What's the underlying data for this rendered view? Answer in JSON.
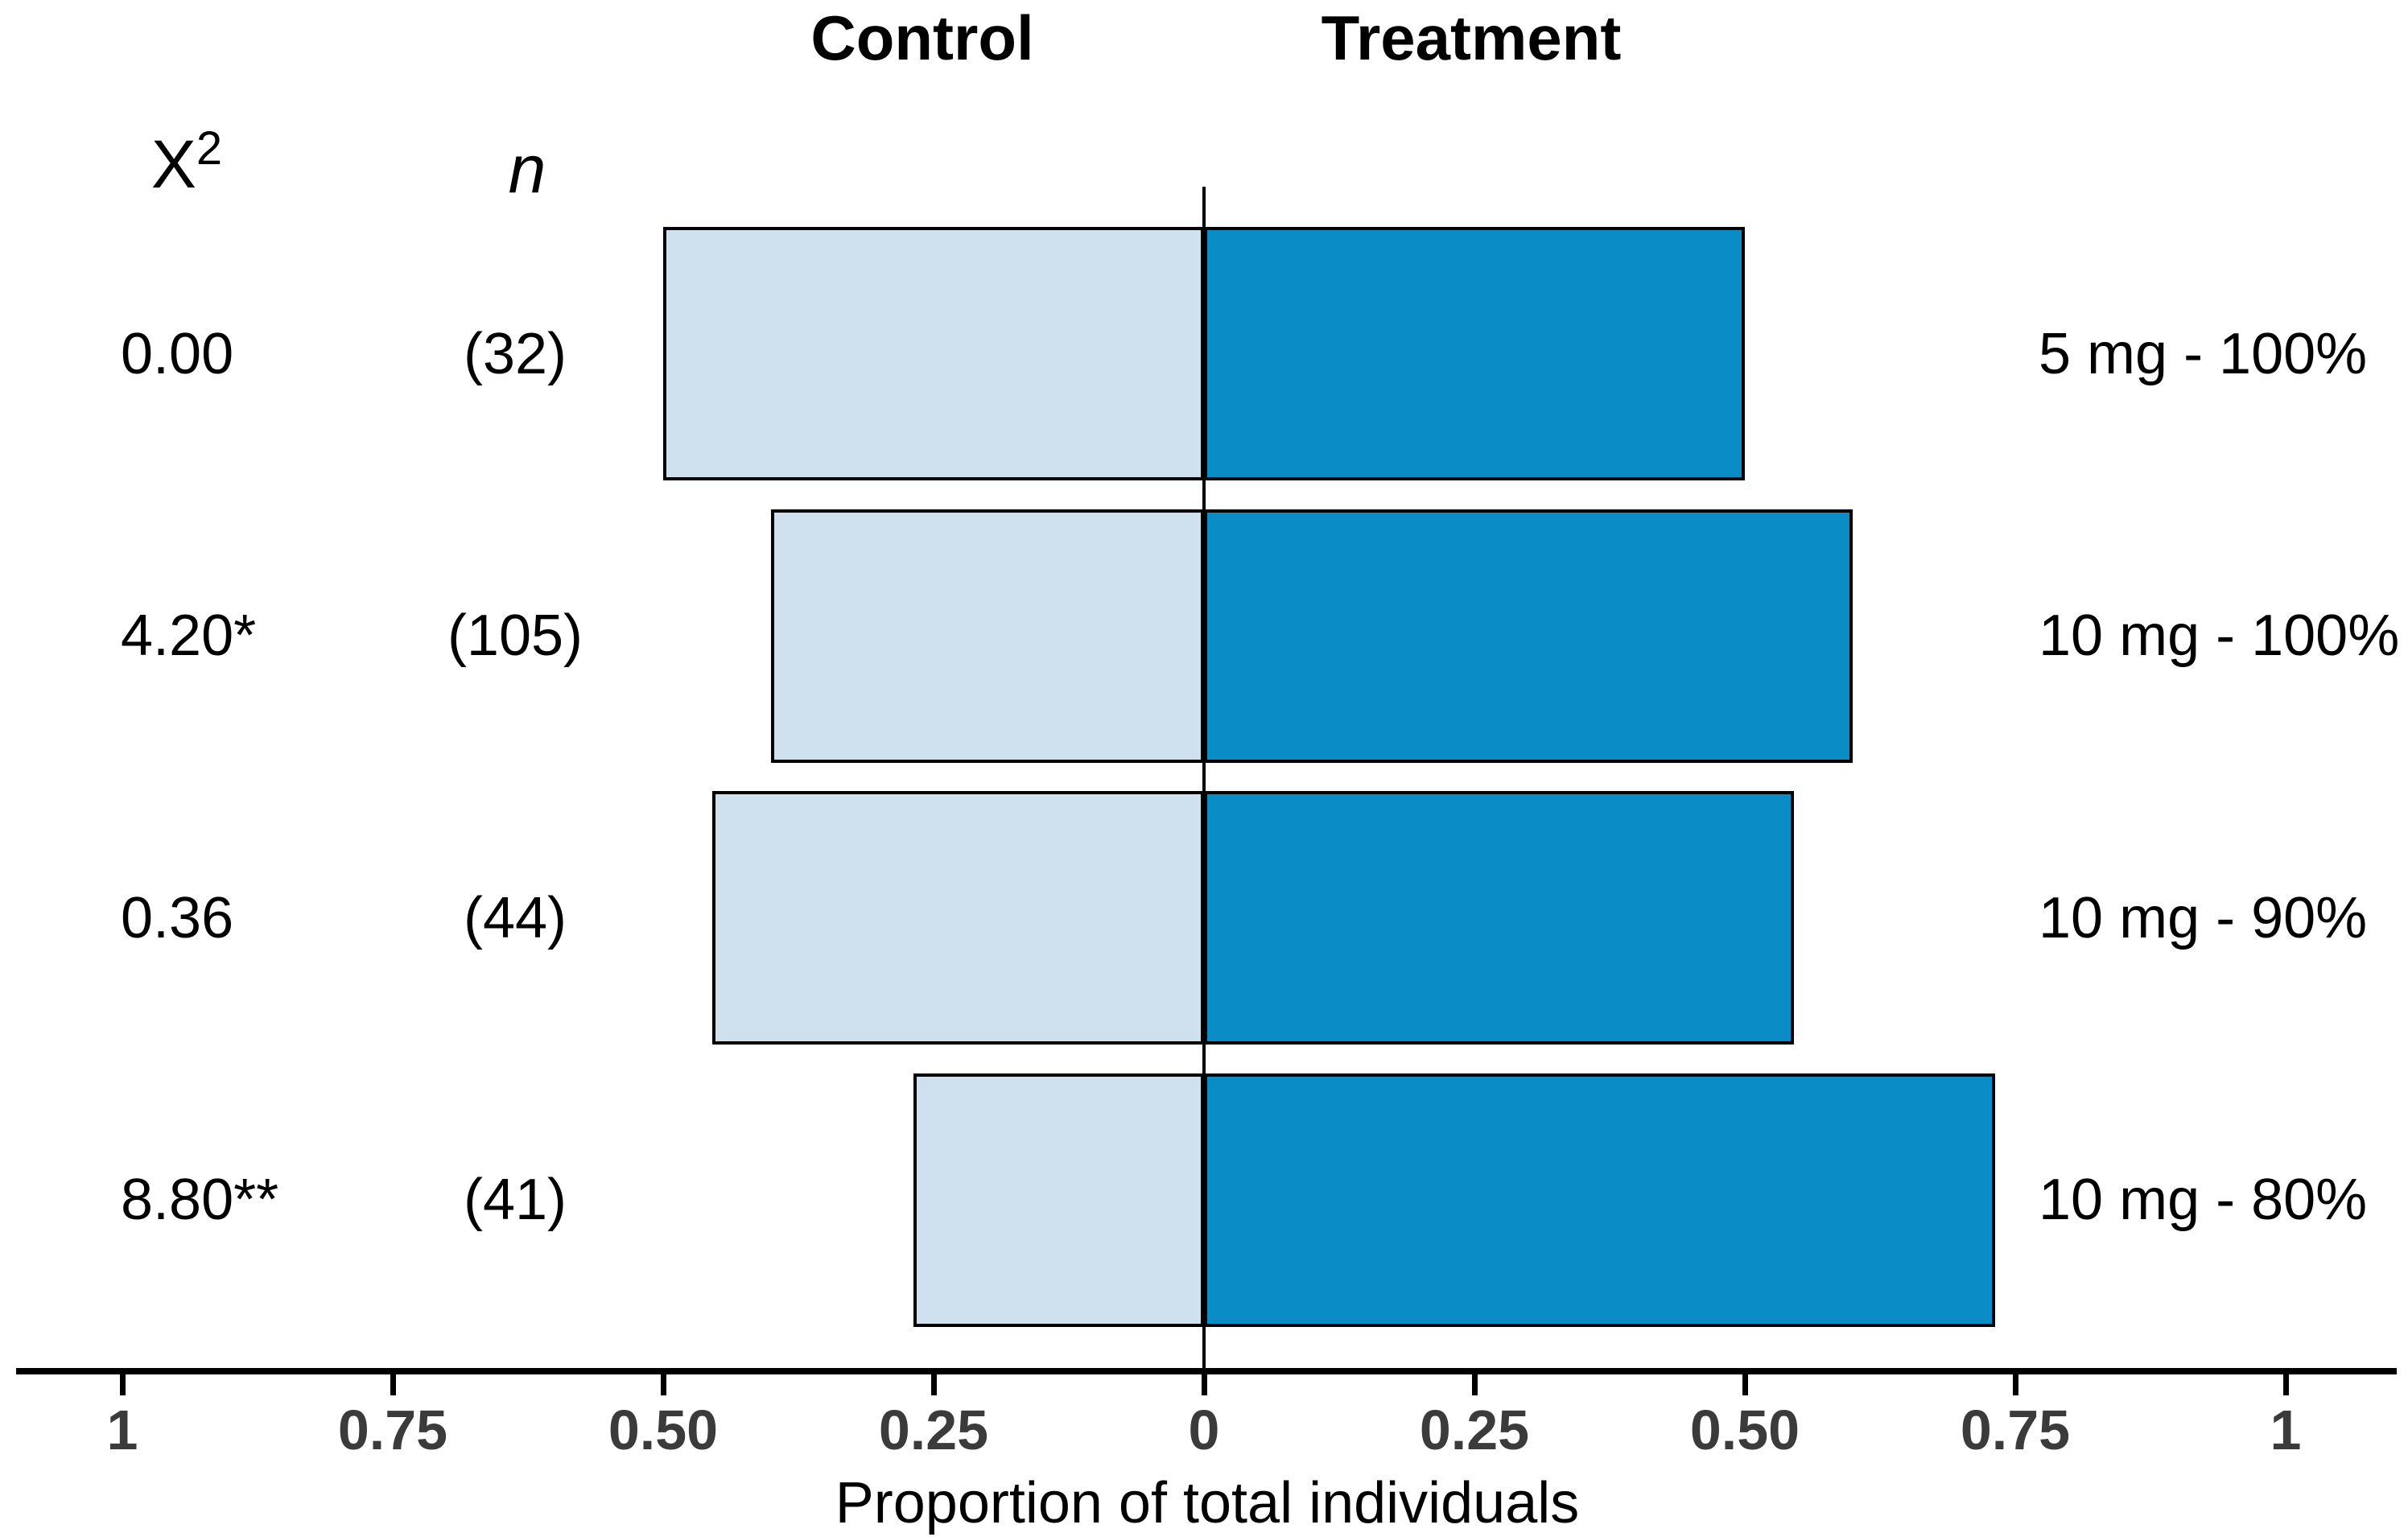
{
  "chart_data": {
    "type": "bar",
    "variant": "diverging_butterfly",
    "title": "",
    "xlabel": "Proportion of total individuals",
    "column_headers": {
      "left": "Control",
      "right": "Treatment"
    },
    "stat_headers": {
      "chi_base": "X",
      "chi_exponent": "2",
      "n": "n"
    },
    "x_axis": {
      "tick_labels": [
        "1",
        "0.75",
        "0.50",
        "0.25",
        "0",
        "0.25",
        "0.50",
        "0.75",
        "1"
      ],
      "tick_values": [
        -1,
        -0.75,
        -0.5,
        -0.25,
        0,
        0.25,
        0.5,
        0.75,
        1
      ],
      "xlim": [
        -1,
        1
      ]
    },
    "rows": [
      {
        "label": "5 mg - 100%",
        "chi_sq": "0.00",
        "n_display": "(32)",
        "n": 32,
        "control": 0.5,
        "treatment": 0.5
      },
      {
        "label": "10 mg - 100%",
        "chi_sq": "4.20*",
        "n_display": "(105)",
        "n": 105,
        "control": 0.4,
        "treatment": 0.6
      },
      {
        "label": "10 mg - 90%",
        "chi_sq": "0.36",
        "n_display": "(44)",
        "n": 44,
        "control": 0.4545,
        "treatment": 0.5455
      },
      {
        "label": "10 mg - 80%",
        "chi_sq": "8.80**",
        "n_display": "(41)",
        "n": 41,
        "control": 0.2683,
        "treatment": 0.7317
      }
    ],
    "colors": {
      "control_fill": "#cfe1ef",
      "treatment_fill": "#0a8cc6",
      "bar_outline": "#000000",
      "axis_text": "#3b3b3b",
      "text": "#000000"
    },
    "grid": false,
    "legend": "none"
  }
}
